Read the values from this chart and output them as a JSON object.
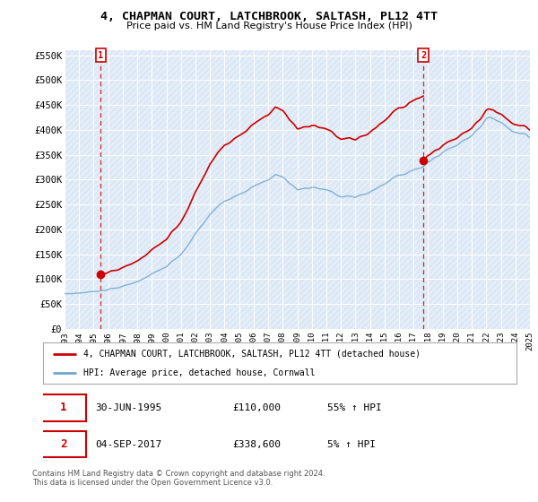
{
  "title": "4, CHAPMAN COURT, LATCHBROOK, SALTASH, PL12 4TT",
  "subtitle": "Price paid vs. HM Land Registry's House Price Index (HPI)",
  "ylim": [
    0,
    560000
  ],
  "yticks": [
    0,
    50000,
    100000,
    150000,
    200000,
    250000,
    300000,
    350000,
    400000,
    450000,
    500000,
    550000
  ],
  "ytick_labels": [
    "£0",
    "£50K",
    "£100K",
    "£150K",
    "£200K",
    "£250K",
    "£300K",
    "£350K",
    "£400K",
    "£450K",
    "£500K",
    "£550K"
  ],
  "background_color": "#ffffff",
  "plot_bg_color": "#dce8f5",
  "grid_color": "#ffffff",
  "hpi_color": "#6fa8d0",
  "price_color": "#cc0000",
  "purchase1_date": 1995.496,
  "purchase1_price": 110000,
  "purchase2_date": 2017.671,
  "purchase2_price": 338600,
  "legend_label1": "4, CHAPMAN COURT, LATCHBROOK, SALTASH, PL12 4TT (detached house)",
  "legend_label2": "HPI: Average price, detached house, Cornwall",
  "footnote": "Contains HM Land Registry data © Crown copyright and database right 2024.\nThis data is licensed under the Open Government Licence v3.0.",
  "xmin": 1993,
  "xmax": 2025
}
